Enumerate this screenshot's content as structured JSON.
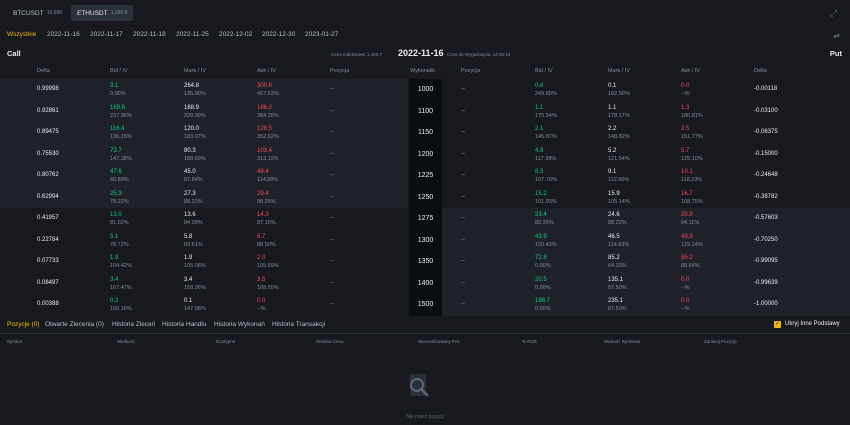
{
  "symbols": [
    {
      "name": "BTCUSDT",
      "price": "16,995",
      "active": false
    },
    {
      "name": "ETHUSDT",
      "price": "1,260.8",
      "active": true
    }
  ],
  "dates": [
    "Wszystkie",
    "2022-11-16",
    "2022-11-17",
    "2022-11-18",
    "2022-11-25",
    "2022-12-02",
    "2022-12-30",
    "2023-01-27"
  ],
  "header": {
    "call": "Call",
    "put": "Put",
    "index_price": "Cena Indeksowa: 1,260.7",
    "center_date": "2022-11-16",
    "expiry_time": "Czas do Wygaśnięcia: 14:06:16"
  },
  "columns": {
    "call": [
      "Delta",
      "Bid / IV",
      "Mark / IV",
      "Ask / IV",
      "Pozycja"
    ],
    "strike": "Wykonalik",
    "put": [
      "Pozycja",
      "Bid / IV",
      "Mark / IV",
      "Ask / IV",
      "Delta"
    ]
  },
  "rows": [
    {
      "strike": "1000",
      "itm": "call",
      "c_delta": "0.99998",
      "c_bid": "3.1",
      "c_bid_iv": "0.00%",
      "c_mark": "264.8",
      "c_mark_iv": "135.00%",
      "c_ask": "300.6",
      "c_ask_iv": "457.63%",
      "c_pos": "--",
      "p_pos": "--",
      "p_bid": "0.6",
      "p_bid_iv": "249.89%",
      "p_mark": "0.1",
      "p_mark_iv": "182.50%",
      "p_ask": "0.0",
      "p_ask_iv": "--%",
      "p_delta": "-0.00118"
    },
    {
      "strike": "1100",
      "itm": "call",
      "c_delta": "0.92861",
      "c_bid": "169.6",
      "c_bid_iv": "237.96%",
      "c_mark": "168.9",
      "c_mark_iv": "229.99%",
      "c_ask": "186.2",
      "c_ask_iv": "384.28%",
      "c_pos": "--",
      "p_pos": "--",
      "p_bid": "1.1",
      "p_bid_iv": "175.54%",
      "p_mark": "1.1",
      "p_mark_iv": "178.17%",
      "p_ask": "1.3",
      "p_ask_iv": "180.81%",
      "p_delta": "-0.03100"
    },
    {
      "strike": "1150",
      "itm": "call",
      "c_delta": "0.89475",
      "c_bid": "116.4",
      "c_bid_iv": "136.15%",
      "c_mark": "120.0",
      "c_mark_iv": "183.07%",
      "c_ask": "128.5",
      "c_ask_iv": "352.62%",
      "c_pos": "--",
      "p_pos": "--",
      "p_bid": "2.1",
      "p_bid_iv": "145.87%",
      "p_mark": "2.2",
      "p_mark_iv": "148.82%",
      "p_ask": "2.5",
      "p_ask_iv": "151.77%",
      "p_delta": "-0.06375"
    },
    {
      "strike": "1200",
      "itm": "call",
      "c_delta": "0.75530",
      "c_bid": "73.7",
      "c_bid_iv": "147.38%",
      "c_mark": "80.3",
      "c_mark_iv": "188.69%",
      "c_ask": "103.4",
      "c_ask_iv": "313.11%",
      "c_pos": "--",
      "p_pos": "--",
      "p_bid": "4.8",
      "p_bid_iv": "117.98%",
      "p_mark": "5.2",
      "p_mark_iv": "121.54%",
      "p_ask": "5.7",
      "p_ask_iv": "125.10%",
      "p_delta": "-0.15000"
    },
    {
      "strike": "1225",
      "itm": "call",
      "c_delta": "0.80762",
      "c_bid": "47.6",
      "c_bid_iv": "60.89%",
      "c_mark": "45.0",
      "c_mark_iv": "87.84%",
      "c_ask": "49.4",
      "c_ask_iv": "114.88%",
      "c_pos": "--",
      "p_pos": "--",
      "p_bid": "8.3",
      "p_bid_iv": "107.70%",
      "p_mark": "9.1",
      "p_mark_iv": "112.96%",
      "p_ask": "10.1",
      "p_ask_iv": "118.23%",
      "p_delta": "-0.24648"
    },
    {
      "strike": "1250",
      "itm": "call",
      "c_delta": "0.62994",
      "c_bid": "25.3",
      "c_bid_iv": "78.22%",
      "c_mark": "27.3",
      "c_mark_iv": "88.23%",
      "c_ask": "29.4",
      "c_ask_iv": "98.25%",
      "c_pos": "--",
      "p_pos": "--",
      "p_bid": "15.2",
      "p_bid_iv": "101.93%",
      "p_mark": "15.9",
      "p_mark_iv": "105.14%",
      "p_ask": "16.7",
      "p_ask_iv": "108.75%",
      "p_delta": "-0.38782"
    },
    {
      "strike": "1275",
      "itm": "put",
      "c_delta": "0.41957",
      "c_bid": "13.0",
      "c_bid_iv": "81.02%",
      "c_mark": "13.6",
      "c_mark_iv": "84.08%",
      "c_ask": "14.3",
      "c_ask_iv": "87.15%",
      "c_pos": "--",
      "p_pos": "--",
      "p_bid": "23.4",
      "p_bid_iv": "82.36%",
      "p_mark": "24.6",
      "p_mark_iv": "88.22%",
      "p_ask": "25.9",
      "p_ask_iv": "94.11%",
      "p_delta": "-0.57603"
    },
    {
      "strike": "1300",
      "itm": "put",
      "c_delta": "0.22784",
      "c_bid": "5.1",
      "c_bid_iv": "78.72%",
      "c_mark": "5.8",
      "c_mark_iv": "83.61%",
      "c_ask": "6.7",
      "c_ask_iv": "88.50%",
      "c_pos": "--",
      "p_pos": "--",
      "p_bid": "43.9",
      "p_bid_iv": "100.43%",
      "p_mark": "46.5",
      "p_mark_iv": "114.83%",
      "p_ask": "49.3",
      "p_ask_iv": "129.24%",
      "p_delta": "-0.70250"
    },
    {
      "strike": "1350",
      "itm": "put",
      "c_delta": "0.07733",
      "c_bid": "1.9",
      "c_bid_iv": "104.42%",
      "c_mark": "1.9",
      "c_mark_iv": "105.06%",
      "c_ask": "2.0",
      "c_ask_iv": "105.69%",
      "c_pos": "--",
      "p_pos": "--",
      "p_bid": "72.8",
      "p_bid_iv": "0.00%",
      "p_mark": "85.2",
      "p_mark_iv": "64.33%",
      "p_ask": "86.2",
      "p_ask_iv": "88.64%",
      "p_delta": "-0.99095"
    },
    {
      "strike": "1400",
      "itm": "put",
      "c_delta": "0.08497",
      "c_bid": "3.4",
      "c_bid_iv": "167.47%",
      "c_mark": "3.4",
      "c_mark_iv": "168.06%",
      "c_ask": "3.5",
      "c_ask_iv": "168.65%",
      "c_pos": "--",
      "p_pos": "--",
      "p_bid": "20.5",
      "p_bid_iv": "0.00%",
      "p_mark": "135.1",
      "p_mark_iv": "87.50%",
      "p_ask": "0.0",
      "p_ask_iv": "--%",
      "p_delta": "-0.99639"
    },
    {
      "strike": "1500",
      "itm": "put",
      "c_delta": "0.00388",
      "c_bid": "0.2",
      "c_bid_iv": "160.16%",
      "c_mark": "0.1",
      "c_mark_iv": "147.98%",
      "c_ask": "0.0",
      "c_ask_iv": "--%",
      "c_pos": "--",
      "p_pos": "--",
      "p_bid": "198.7",
      "p_bid_iv": "0.00%",
      "p_mark": "235.1",
      "p_mark_iv": "87.50%",
      "p_ask": "0.0",
      "p_ask_iv": "--%",
      "p_delta": "-1.00000"
    }
  ],
  "bottom": {
    "tabs": [
      "Pozycje (0)",
      "Otwarte Zlecenia (0)",
      "Historia Zleceń",
      "Historia Handlu",
      "Historia Wykonań",
      "Historia Transakcji"
    ],
    "hide_label": "Ukryj Inne Podstawy",
    "columns": [
      "Symbol",
      "Wielkość",
      "Dostępne",
      "Średnia Cena",
      "Niezrealizowany PnL",
      "% ROE",
      "Wartość Rynkowa",
      "Zamknij Pozycję"
    ],
    "empty_text": "Nie masz pozycji"
  },
  "colors": {
    "accent": "#f0b90b",
    "bid": "#0ecb81",
    "ask": "#f6465d",
    "bg": "#181a20",
    "itm": "#1f2329"
  }
}
